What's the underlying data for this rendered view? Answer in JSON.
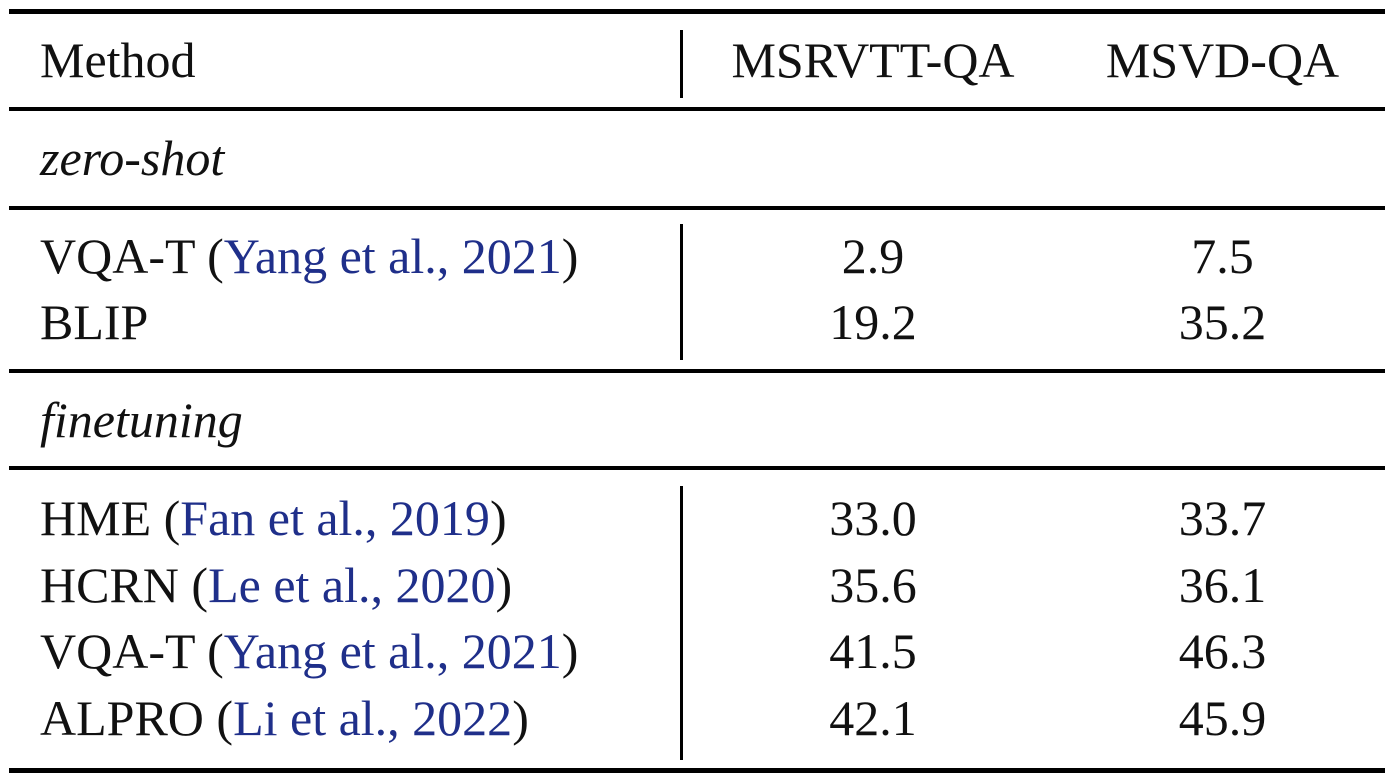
{
  "header": {
    "method": "Method",
    "col1": "MSRVTT-QA",
    "col2": "MSVD-QA"
  },
  "sections": [
    {
      "title": "zero-shot",
      "rows": [
        {
          "method": "VQA-T",
          "cite": "Yang et al., 2021",
          "v1": "2.9",
          "v2": "7.5"
        },
        {
          "method": "BLIP",
          "cite": "",
          "v1": "19.2",
          "v2": "35.2"
        }
      ]
    },
    {
      "title": "finetuning",
      "rows": [
        {
          "method": "HME",
          "cite": "Fan et al., 2019",
          "v1": "33.0",
          "v2": "33.7"
        },
        {
          "method": "HCRN",
          "cite": "Le et al., 2020",
          "v1": "35.6",
          "v2": "36.1"
        },
        {
          "method": "VQA-T",
          "cite": "Yang et al., 2021",
          "v1": "41.5",
          "v2": "46.3"
        },
        {
          "method": "ALPRO",
          "cite": "Li et al., 2022",
          "v1": "42.1",
          "v2": "45.9"
        }
      ]
    }
  ],
  "colors": {
    "citation": "#1f2f8a",
    "text": "#111111"
  }
}
